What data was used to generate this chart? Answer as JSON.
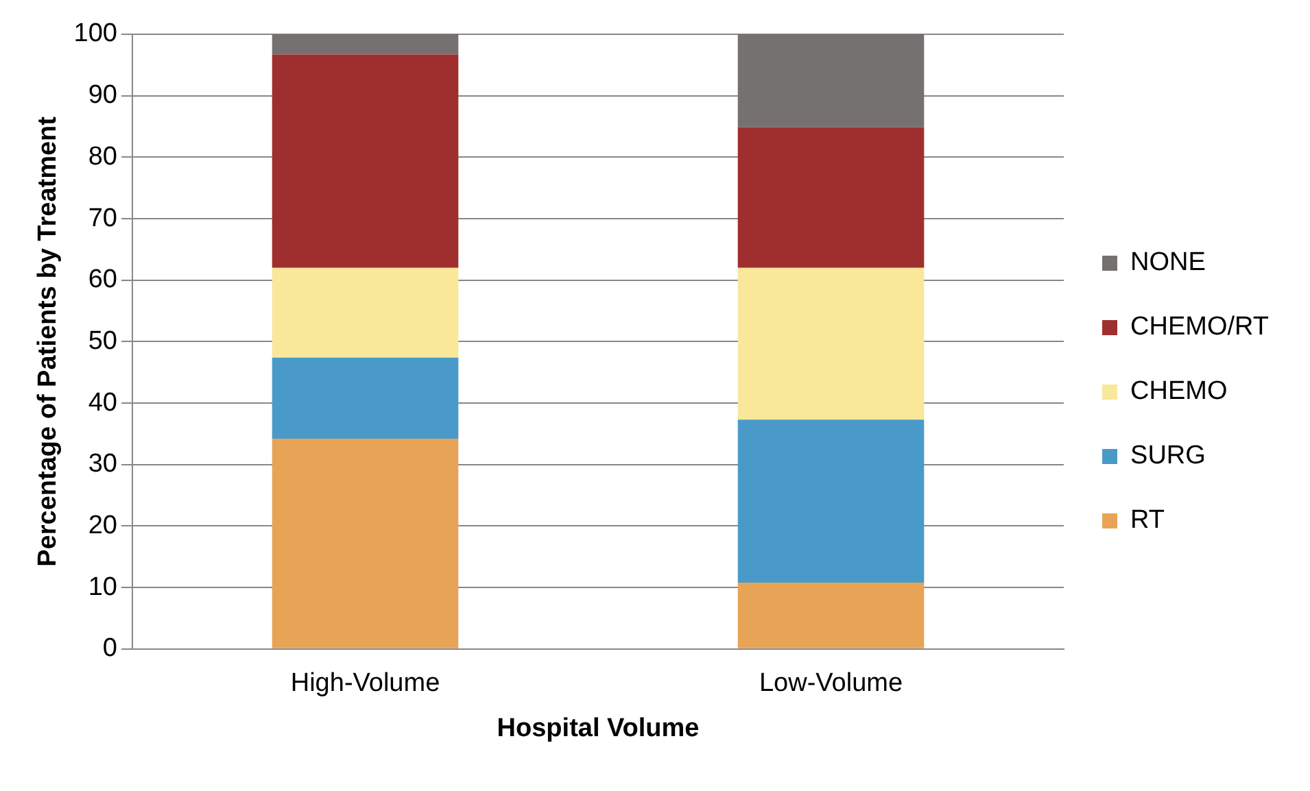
{
  "chart_data": {
    "type": "bar",
    "stacked": true,
    "xlabel": "Hospital Volume",
    "ylabel": "Percentage of Patients by Treatment",
    "categories": [
      "High-Volume",
      "Low-Volume"
    ],
    "series": [
      {
        "name": "RT",
        "color": "#e8a456",
        "values": [
          34.2,
          10.8
        ]
      },
      {
        "name": "SURG",
        "color": "#4a9ac9",
        "values": [
          13.2,
          26.5
        ]
      },
      {
        "name": "CHEMO",
        "color": "#f9e79a",
        "values": [
          14.6,
          24.7
        ]
      },
      {
        "name": "CHEMO/RT",
        "color": "#9e2f2e",
        "values": [
          34.7,
          22.9
        ]
      },
      {
        "name": "NONE",
        "color": "#767171",
        "values": [
          3.3,
          15.1
        ]
      }
    ],
    "ylim": [
      0,
      100
    ],
    "yticks": [
      0,
      10,
      20,
      30,
      40,
      50,
      60,
      70,
      80,
      90,
      100
    ],
    "grid": "y",
    "legend": "right"
  }
}
